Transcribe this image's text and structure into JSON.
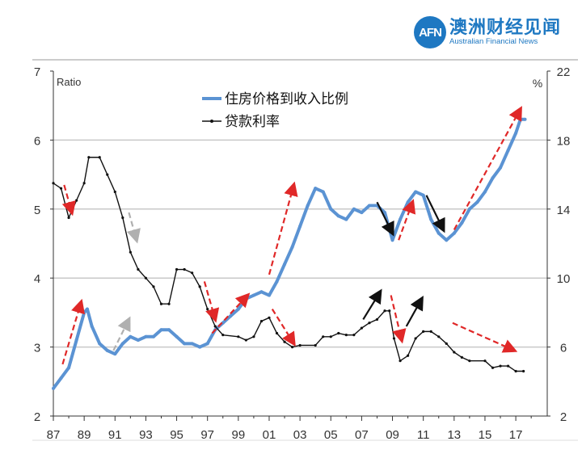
{
  "logo": {
    "mark": "AFN",
    "name_cn": "澳洲财经见闻",
    "name_en": "Australian Financial News"
  },
  "chart_data": {
    "type": "line",
    "title": "",
    "left_axis": {
      "label": "Ratio",
      "range": [
        2,
        7
      ],
      "ticks": [
        "2",
        "3",
        "4",
        "5",
        "6",
        "7"
      ]
    },
    "right_axis": {
      "label": "%",
      "range": [
        2,
        22
      ],
      "ticks": [
        "2",
        "6",
        "10",
        "14",
        "18",
        "22"
      ]
    },
    "x_axis": {
      "range": [
        1987,
        2018.7
      ],
      "ticks": [
        "87",
        "89",
        "91",
        "93",
        "95",
        "97",
        "99",
        "01",
        "03",
        "05",
        "07",
        "09",
        "11",
        "13",
        "15",
        "17"
      ]
    },
    "grid": "horizontal",
    "legend_position": "top-center",
    "series": [
      {
        "name": "住房价格到收入比例",
        "axis": "left",
        "color": "#5b93d3",
        "x": [
          1987,
          1987.5,
          1988,
          1988.5,
          1989,
          1989.2,
          1989.5,
          1990,
          1990.5,
          1991,
          1991.5,
          1992,
          1992.5,
          1993,
          1993.5,
          1994,
          1994.5,
          1995,
          1995.5,
          1996,
          1996.5,
          1997,
          1997.5,
          1998,
          1998.5,
          1999,
          1999.5,
          2000,
          2000.5,
          2001,
          2001.5,
          2002,
          2002.5,
          2003,
          2003.5,
          2004,
          2004.5,
          2005,
          2005.5,
          2006,
          2006.5,
          2007,
          2007.5,
          2008,
          2008.5,
          2009,
          2009.5,
          2010,
          2010.5,
          2011,
          2011.5,
          2012,
          2012.5,
          2013,
          2013.5,
          2014,
          2014.5,
          2015,
          2015.5,
          2016,
          2016.5,
          2017,
          2017.3,
          2017.6
        ],
        "values": [
          2.4,
          2.55,
          2.7,
          3.1,
          3.5,
          3.55,
          3.3,
          3.05,
          2.95,
          2.9,
          3.05,
          3.15,
          3.1,
          3.15,
          3.15,
          3.25,
          3.25,
          3.15,
          3.05,
          3.05,
          3.0,
          3.05,
          3.25,
          3.35,
          3.45,
          3.55,
          3.7,
          3.75,
          3.8,
          3.75,
          3.95,
          4.2,
          4.45,
          4.75,
          5.05,
          5.3,
          5.25,
          5.0,
          4.9,
          4.85,
          5.0,
          4.95,
          5.05,
          5.05,
          4.95,
          4.55,
          4.85,
          5.1,
          5.25,
          5.2,
          4.85,
          4.65,
          4.55,
          4.65,
          4.8,
          5.0,
          5.1,
          5.25,
          5.45,
          5.6,
          5.85,
          6.1,
          6.3,
          6.3
        ]
      },
      {
        "name": "贷款利率",
        "axis": "right",
        "color": "#111111",
        "x": [
          1987,
          1987.5,
          1988,
          1988.5,
          1989,
          1989.3,
          1990,
          1990.5,
          1991,
          1991.5,
          1992,
          1992.5,
          1993,
          1993.5,
          1994,
          1994.5,
          1995,
          1995.5,
          1996,
          1996.5,
          1997,
          1997.5,
          1998,
          1999,
          1999.5,
          2000,
          2000.5,
          2001,
          2001.5,
          2002,
          2002.5,
          2003,
          2004,
          2004.5,
          2005,
          2005.5,
          2006,
          2006.5,
          2007,
          2007.5,
          2008,
          2008.5,
          2008.8,
          2009.1,
          2009.5,
          2010,
          2010.5,
          2011,
          2011.5,
          2012,
          2012.5,
          2013,
          2013.5,
          2014,
          2015,
          2015.5,
          2016,
          2016.5,
          2017,
          2017.5
        ],
        "values": [
          15.5,
          15.2,
          13.5,
          14.5,
          15.5,
          17,
          17,
          16,
          15,
          13.5,
          11.5,
          10.5,
          10,
          9.5,
          8.5,
          8.5,
          10.5,
          10.5,
          10.3,
          9.5,
          8.2,
          7.2,
          6.7,
          6.6,
          6.4,
          6.6,
          7.5,
          7.7,
          6.8,
          6.3,
          6.0,
          6.1,
          6.1,
          6.6,
          6.6,
          6.8,
          6.7,
          6.7,
          7.1,
          7.4,
          7.6,
          8.1,
          8.1,
          6.5,
          5.2,
          5.5,
          6.5,
          6.9,
          6.9,
          6.6,
          6.2,
          5.7,
          5.4,
          5.2,
          5.2,
          4.8,
          4.9,
          4.9,
          4.6,
          4.6
        ]
      }
    ],
    "annotations_arrows": [
      {
        "from": [
          1987.7,
          5.35
        ],
        "to": [
          1988.2,
          4.95
        ],
        "color": "#e02828"
      },
      {
        "from": [
          1987.6,
          2.75
        ],
        "to": [
          1988.8,
          3.65
        ],
        "color": "#e02828"
      },
      {
        "from": [
          1991.9,
          4.95
        ],
        "to": [
          1992.4,
          4.55
        ],
        "color": "#b0b0b0"
      },
      {
        "from": [
          1990.9,
          2.95
        ],
        "to": [
          1991.9,
          3.4
        ],
        "color": "#b0b0b0"
      },
      {
        "from": [
          1996.8,
          3.95
        ],
        "to": [
          1997.5,
          3.4
        ],
        "color": "#e02828"
      },
      {
        "from": [
          1997.3,
          3.2
        ],
        "to": [
          1999.6,
          3.75
        ],
        "color": "#e02828"
      },
      {
        "from": [
          2001.0,
          4.05
        ],
        "to": [
          2002.6,
          5.35
        ],
        "color": "#e02828"
      },
      {
        "from": [
          2001.2,
          3.55
        ],
        "to": [
          2002.6,
          3.05
        ],
        "color": "#e02828"
      },
      {
        "from": [
          2008.0,
          5.1
        ],
        "to": [
          2009.0,
          4.65
        ],
        "color": "#111111"
      },
      {
        "from": [
          2007.1,
          3.4
        ],
        "to": [
          2008.2,
          3.8
        ],
        "color": "#111111"
      },
      {
        "from": [
          2009.4,
          4.55
        ],
        "to": [
          2010.3,
          5.1
        ],
        "color": "#e02828"
      },
      {
        "from": [
          2008.9,
          3.75
        ],
        "to": [
          2009.6,
          3.1
        ],
        "color": "#e02828"
      },
      {
        "from": [
          2009.9,
          3.3
        ],
        "to": [
          2010.9,
          3.7
        ],
        "color": "#111111"
      },
      {
        "from": [
          2011.2,
          5.2
        ],
        "to": [
          2012.3,
          4.7
        ],
        "color": "#111111"
      },
      {
        "from": [
          2013.0,
          4.7
        ],
        "to": [
          2017.3,
          6.45
        ],
        "color": "#e02828"
      },
      {
        "from": [
          2012.9,
          3.35
        ],
        "to": [
          2016.9,
          2.95
        ],
        "color": "#e02828"
      }
    ]
  }
}
